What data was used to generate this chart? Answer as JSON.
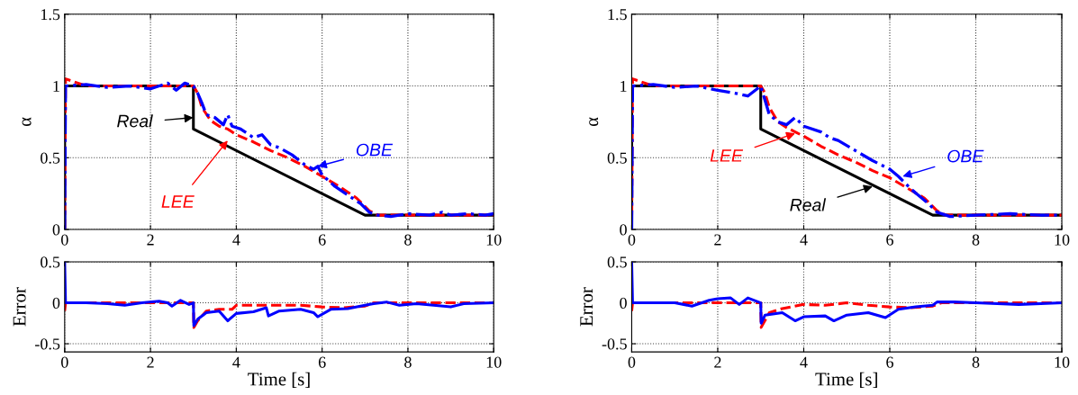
{
  "chart_data": [
    {
      "type": "line",
      "ylabel": "α",
      "xlim": [
        0,
        10
      ],
      "ylim": [
        0,
        1.5
      ],
      "xticks": [
        0,
        2,
        4,
        6,
        8,
        10
      ],
      "yticks": [
        0,
        0.5,
        1,
        1.5
      ],
      "grid": true,
      "legend": false,
      "series": [
        {
          "color": "#000000",
          "line_style": "solid",
          "x": [
            0,
            0,
            3,
            3,
            7,
            10
          ],
          "values": [
            0,
            1,
            1,
            0.7,
            0.1,
            0.1
          ]
        },
        {
          "color": "#ff0000",
          "line_style": "dashed",
          "x": [
            0,
            0.02,
            0.5,
            1,
            1.5,
            2,
            2.5,
            3,
            3.1,
            3.2,
            3.4,
            3.6,
            3.8,
            4.0,
            4.4,
            4.8,
            5.2,
            5.6,
            6.0,
            6.4,
            6.8,
            7.1,
            7.3,
            8,
            9,
            10
          ],
          "values": [
            0,
            1.05,
            1.0,
            1.0,
            1.0,
            1.0,
            1.0,
            1.0,
            0.95,
            0.85,
            0.76,
            0.72,
            0.7,
            0.66,
            0.61,
            0.55,
            0.5,
            0.44,
            0.37,
            0.3,
            0.22,
            0.13,
            0.1,
            0.1,
            0.1,
            0.1
          ]
        },
        {
          "color": "#0000ff",
          "line_style": "dashdot",
          "x": [
            0,
            0.02,
            0.5,
            1,
            1.5,
            2.0,
            2.4,
            2.6,
            2.8,
            3.0,
            3.1,
            3.2,
            3.3,
            3.5,
            3.7,
            3.8,
            3.9,
            4.1,
            4.4,
            4.6,
            4.8,
            5.0,
            5.3,
            5.6,
            5.8,
            5.9,
            6.0,
            6.3,
            6.6,
            6.9,
            7.1,
            7.3,
            7.6,
            8.0,
            8.5,
            8.8,
            9.0,
            9.4,
            9.8,
            10
          ],
          "values": [
            0,
            1.0,
            1.01,
            0.99,
            1.0,
            0.98,
            1.02,
            0.97,
            1.02,
            1.0,
            0.95,
            0.88,
            0.8,
            0.78,
            0.73,
            0.8,
            0.72,
            0.7,
            0.64,
            0.66,
            0.59,
            0.57,
            0.52,
            0.45,
            0.42,
            0.44,
            0.38,
            0.3,
            0.24,
            0.18,
            0.12,
            0.1,
            0.09,
            0.11,
            0.1,
            0.12,
            0.1,
            0.11,
            0.1,
            0.11
          ]
        }
      ],
      "annotations": [
        {
          "text": "Real",
          "x": 3,
          "y": 0.78
        },
        {
          "text": "LEE",
          "x": 3.8,
          "y": 0.62
        },
        {
          "text": "OBE",
          "x": 5.9,
          "y": 0.44
        }
      ]
    },
    {
      "type": "line",
      "ylabel": "Error",
      "xlabel": "Time [s]",
      "xlim": [
        0,
        10
      ],
      "ylim": [
        -0.6,
        0.5
      ],
      "xticks": [
        0,
        2,
        4,
        6,
        8,
        10
      ],
      "yticks": [
        -0.5,
        0,
        0.5
      ],
      "grid": true,
      "legend": false,
      "series": [
        {
          "color": "#ff0000",
          "line_style": "dashed",
          "x": [
            0,
            0.02,
            1,
            2,
            3,
            3.01,
            3.1,
            3.3,
            3.6,
            3.9,
            4.0,
            4.5,
            5,
            5.5,
            6,
            6.5,
            7,
            7.2,
            8,
            9,
            10
          ],
          "values": [
            -0.1,
            0,
            0,
            0,
            0,
            -0.3,
            -0.22,
            -0.1,
            -0.08,
            -0.08,
            -0.03,
            -0.03,
            -0.03,
            -0.03,
            -0.05,
            -0.06,
            -0.04,
            0,
            0,
            0,
            0
          ]
        },
        {
          "color": "#0000ff",
          "line_style": "solid",
          "x": [
            0,
            0.02,
            0.5,
            1,
            1.4,
            1.8,
            2.2,
            2.4,
            2.5,
            2.7,
            2.9,
            3.0,
            3.01,
            3.1,
            3.3,
            3.6,
            3.8,
            4.0,
            4.4,
            4.7,
            4.75,
            5.0,
            5.5,
            5.8,
            5.9,
            6.2,
            6.6,
            7.0,
            7.2,
            7.5,
            7.8,
            8.2,
            8.6,
            9.0,
            9.3,
            10
          ],
          "values": [
            0.5,
            0,
            0,
            -0.01,
            -0.03,
            0,
            0.02,
            0,
            -0.04,
            0.03,
            -0.02,
            0,
            -0.28,
            -0.2,
            -0.12,
            -0.1,
            -0.22,
            -0.13,
            -0.11,
            -0.06,
            -0.16,
            -0.1,
            -0.08,
            -0.12,
            -0.17,
            -0.08,
            -0.07,
            -0.03,
            -0.01,
            0.01,
            -0.03,
            -0.01,
            -0.03,
            -0.05,
            -0.01,
            0
          ]
        }
      ]
    },
    {
      "type": "line",
      "ylabel": "α",
      "xlim": [
        0,
        10
      ],
      "ylim": [
        0,
        1.5
      ],
      "xticks": [
        0,
        2,
        4,
        6,
        8,
        10
      ],
      "yticks": [
        0,
        0.5,
        1,
        1.5
      ],
      "grid": true,
      "legend": false,
      "series": [
        {
          "color": "#000000",
          "line_style": "solid",
          "x": [
            0,
            0,
            3,
            3,
            7,
            10
          ],
          "values": [
            0,
            1,
            1,
            0.7,
            0.1,
            0.1
          ]
        },
        {
          "color": "#ff0000",
          "line_style": "dashed",
          "x": [
            0,
            0.02,
            0.5,
            1,
            1.5,
            2,
            2.5,
            3,
            3.1,
            3.2,
            3.4,
            3.6,
            3.8,
            4.0,
            4.4,
            4.8,
            5.2,
            5.6,
            6.0,
            6.4,
            6.8,
            7.1,
            7.3,
            8,
            9,
            10
          ],
          "values": [
            0,
            1.05,
            1.0,
            1.0,
            1.0,
            1.0,
            1.0,
            1.0,
            0.95,
            0.85,
            0.75,
            0.71,
            0.68,
            0.65,
            0.58,
            0.52,
            0.47,
            0.41,
            0.36,
            0.29,
            0.22,
            0.13,
            0.1,
            0.1,
            0.1,
            0.1
          ]
        },
        {
          "color": "#0000ff",
          "line_style": "dashdot",
          "x": [
            0,
            0.02,
            0.5,
            1,
            1.5,
            2.0,
            2.4,
            2.7,
            3.0,
            3.1,
            3.2,
            3.4,
            3.6,
            3.8,
            4.0,
            4.4,
            4.6,
            4.8,
            5.2,
            5.6,
            6.0,
            6.2,
            6.5,
            6.9,
            7.1,
            7.4,
            8,
            8.8,
            9.5,
            10
          ],
          "values": [
            0,
            1.0,
            1.01,
            0.99,
            1.0,
            0.97,
            0.95,
            0.93,
            1.0,
            0.9,
            0.8,
            0.75,
            0.73,
            0.78,
            0.72,
            0.68,
            0.64,
            0.62,
            0.55,
            0.48,
            0.42,
            0.37,
            0.28,
            0.18,
            0.12,
            0.09,
            0.1,
            0.11,
            0.1,
            0.1
          ]
        }
      ],
      "annotations": [
        {
          "text": "LEE",
          "x": 3.8,
          "y": 0.67
        },
        {
          "text": "OBE",
          "x": 6.3,
          "y": 0.37
        },
        {
          "text": "Real",
          "x": 5.6,
          "y": 0.3
        }
      ]
    },
    {
      "type": "line",
      "ylabel": "Error",
      "xlabel": "Time [s]",
      "xlim": [
        0,
        10
      ],
      "ylim": [
        -0.6,
        0.5
      ],
      "xticks": [
        0,
        2,
        4,
        6,
        8,
        10
      ],
      "yticks": [
        -0.5,
        0,
        0.5
      ],
      "grid": true,
      "legend": false,
      "series": [
        {
          "color": "#ff0000",
          "line_style": "dashed",
          "x": [
            0,
            0.02,
            1,
            2,
            3,
            3.01,
            3.2,
            3.5,
            4,
            4.5,
            5,
            5.5,
            6,
            6.5,
            7,
            7.2,
            8,
            9,
            10
          ],
          "values": [
            -0.1,
            0,
            0,
            0,
            0,
            -0.3,
            -0.12,
            -0.07,
            -0.02,
            -0.03,
            0,
            -0.03,
            -0.05,
            -0.06,
            -0.04,
            0,
            0,
            0,
            0
          ]
        },
        {
          "color": "#0000ff",
          "line_style": "solid",
          "x": [
            0,
            0.02,
            1,
            1.4,
            1.8,
            2.0,
            2.3,
            2.5,
            2.7,
            3.0,
            3.01,
            3.1,
            3.5,
            3.8,
            4.0,
            4.5,
            4.7,
            5.0,
            5.5,
            5.9,
            6.2,
            6.6,
            7.0,
            7.1,
            7.5,
            8,
            9,
            10
          ],
          "values": [
            0.5,
            0,
            0,
            -0.04,
            0.03,
            0.05,
            0.06,
            -0.02,
            0.06,
            0,
            -0.25,
            -0.15,
            -0.12,
            -0.22,
            -0.17,
            -0.16,
            -0.22,
            -0.15,
            -0.12,
            -0.18,
            -0.08,
            -0.05,
            -0.03,
            0.01,
            0.01,
            0,
            -0.02,
            0
          ]
        }
      ]
    }
  ]
}
